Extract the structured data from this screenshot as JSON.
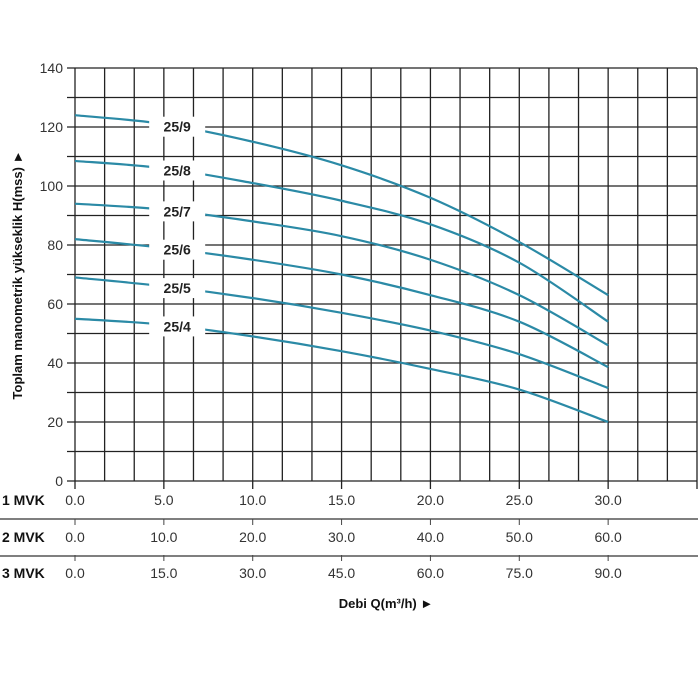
{
  "chart_data": {
    "type": "line",
    "title": "",
    "ylabel": "Toplam manometrik yükseklik H(mss) ►",
    "xlabel": "Debi Q(m³/h) ►",
    "ylim": [
      0,
      140
    ],
    "yticks": [
      "0",
      "20",
      "40",
      "60",
      "80",
      "100",
      "120",
      "140"
    ],
    "xlim": [
      0,
      35
    ],
    "grid": true,
    "line_color": "#2b8aa6",
    "x_scales": [
      {
        "name": "1 MVK",
        "ticks": [
          "0.0",
          "5.0",
          "10.0",
          "15.0",
          "20.0",
          "25.0",
          "30.0"
        ]
      },
      {
        "name": "2 MVK",
        "ticks": [
          "0.0",
          "10.0",
          "20.0",
          "30.0",
          "40.0",
          "50.0",
          "60.0"
        ]
      },
      {
        "name": "3 MVK",
        "ticks": [
          "0.0",
          "15.0",
          "30.0",
          "45.0",
          "60.0",
          "75.0",
          "90.0"
        ]
      }
    ],
    "x": [
      0,
      5,
      10,
      15,
      20,
      25,
      30
    ],
    "series": [
      {
        "name": "25/9",
        "values": [
          124,
          121,
          115,
          107,
          96,
          81,
          63
        ]
      },
      {
        "name": "25/8",
        "values": [
          108.5,
          106,
          101,
          95,
          87,
          74,
          54
        ]
      },
      {
        "name": "25/7",
        "values": [
          94,
          92,
          88,
          83,
          75,
          63,
          46
        ]
      },
      {
        "name": "25/6",
        "values": [
          82,
          79,
          75,
          70,
          63,
          54,
          38.6
        ]
      },
      {
        "name": "25/5",
        "values": [
          69,
          66,
          62,
          57,
          51,
          43,
          31.5
        ]
      },
      {
        "name": "25/4",
        "values": [
          55,
          53,
          49,
          44,
          38,
          31,
          20
        ]
      }
    ]
  }
}
